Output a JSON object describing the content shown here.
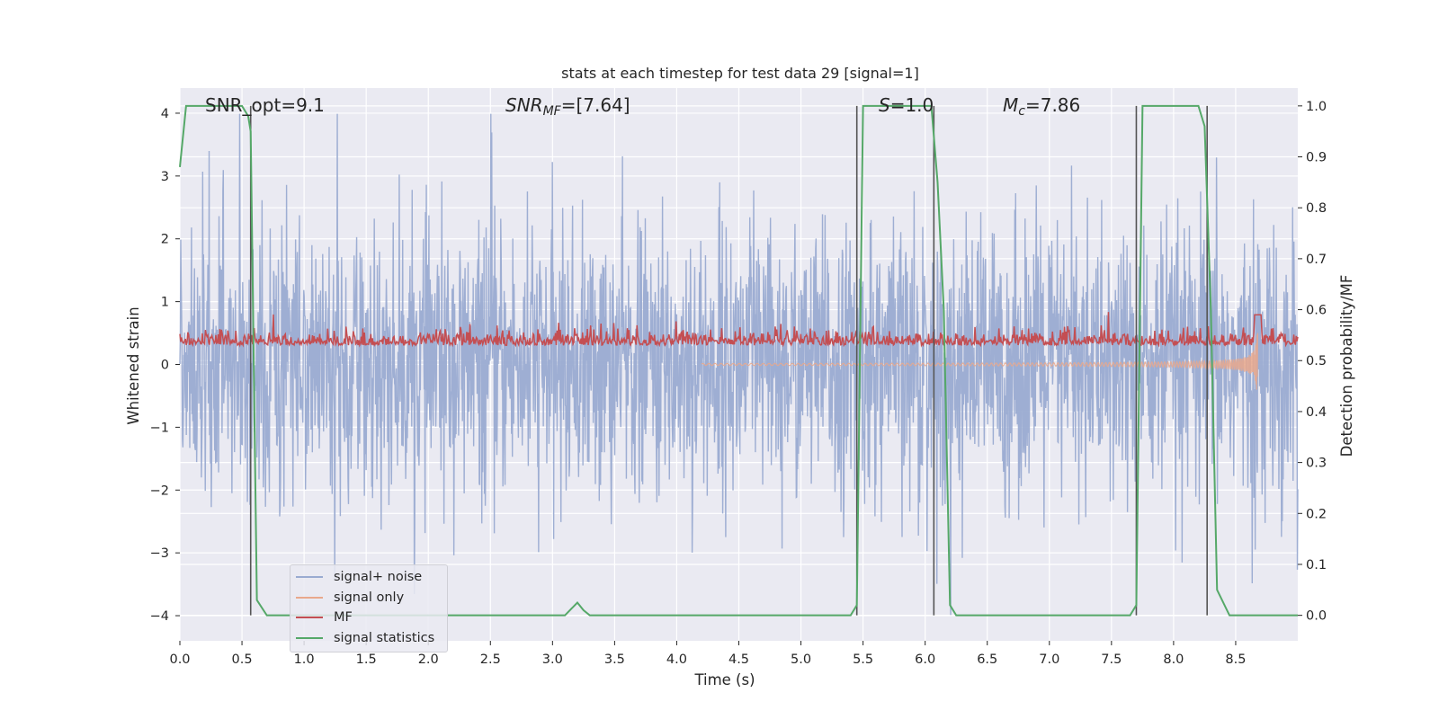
{
  "chart_data": {
    "type": "line",
    "title": "stats at each timestep for test data 29 [signal=1]",
    "xlabel": "Time (s)",
    "ylabel_left": "Whitened strain",
    "ylabel_right": "Detection probability/MF",
    "xlim": [
      0.0,
      9.0
    ],
    "ylim_left": [
      -4.4,
      4.4
    ],
    "ylim_right": [
      -0.05,
      1.035
    ],
    "xticks": [
      "0.0",
      "0.5",
      "1.0",
      "1.5",
      "2.0",
      "2.5",
      "3.0",
      "3.5",
      "4.0",
      "4.5",
      "5.0",
      "5.5",
      "6.0",
      "6.5",
      "7.0",
      "7.5",
      "8.0",
      "8.5"
    ],
    "yticks_left": [
      "4",
      "3",
      "2",
      "1",
      "0",
      "−1",
      "−2",
      "−3",
      "−4"
    ],
    "yticks_right": [
      "1.0",
      "0.9",
      "0.8",
      "0.7",
      "0.6",
      "0.5",
      "0.4",
      "0.3",
      "0.2",
      "0.1",
      "0.0"
    ],
    "grid": true,
    "legend_position": "lower-left",
    "annotations": {
      "snr_opt": "SNR_opt=9.1",
      "snr_mf_label": "SNR",
      "snr_mf_sub": "MF",
      "snr_mf_value": "=[7.64]",
      "s_label": "S",
      "s_value": "=1.0",
      "mc_label": "M",
      "mc_sub": "c",
      "mc_value": "=7.86"
    },
    "series": [
      {
        "name": "signal+ noise",
        "color": "#9aabd1",
        "description_values": "noise band approximately -2 to 2 with spikes up to about 4 and down to about -4"
      },
      {
        "name": "signal only",
        "color": "#e9a88c"
      },
      {
        "name": "MF",
        "color": "#c44e52"
      },
      {
        "name": "signal statistics",
        "color": "#55a868",
        "x": [
          0.0,
          0.05,
          0.1,
          0.5,
          0.55,
          0.57,
          0.62,
          0.7,
          3.1,
          3.2,
          3.25,
          3.3,
          5.4,
          5.45,
          5.5,
          6.05,
          6.1,
          6.15,
          6.2,
          6.25,
          7.65,
          7.7,
          7.75,
          8.2,
          8.25,
          8.3,
          8.35,
          8.45,
          8.7,
          9.0
        ],
        "values": [
          0.88,
          1.0,
          1.0,
          1.0,
          0.98,
          0.95,
          0.03,
          0.0,
          0.0,
          0.025,
          0.01,
          0.0,
          0.0,
          0.02,
          1.0,
          1.0,
          0.85,
          0.6,
          0.02,
          0.0,
          0.0,
          0.02,
          1.0,
          1.0,
          0.96,
          0.6,
          0.05,
          0.0,
          0.0,
          0.0
        ]
      },
      {
        "name": "",
        "color": "#555555",
        "vlines_x": [
          0.57,
          5.45,
          6.07,
          7.7,
          8.27
        ]
      }
    ]
  }
}
